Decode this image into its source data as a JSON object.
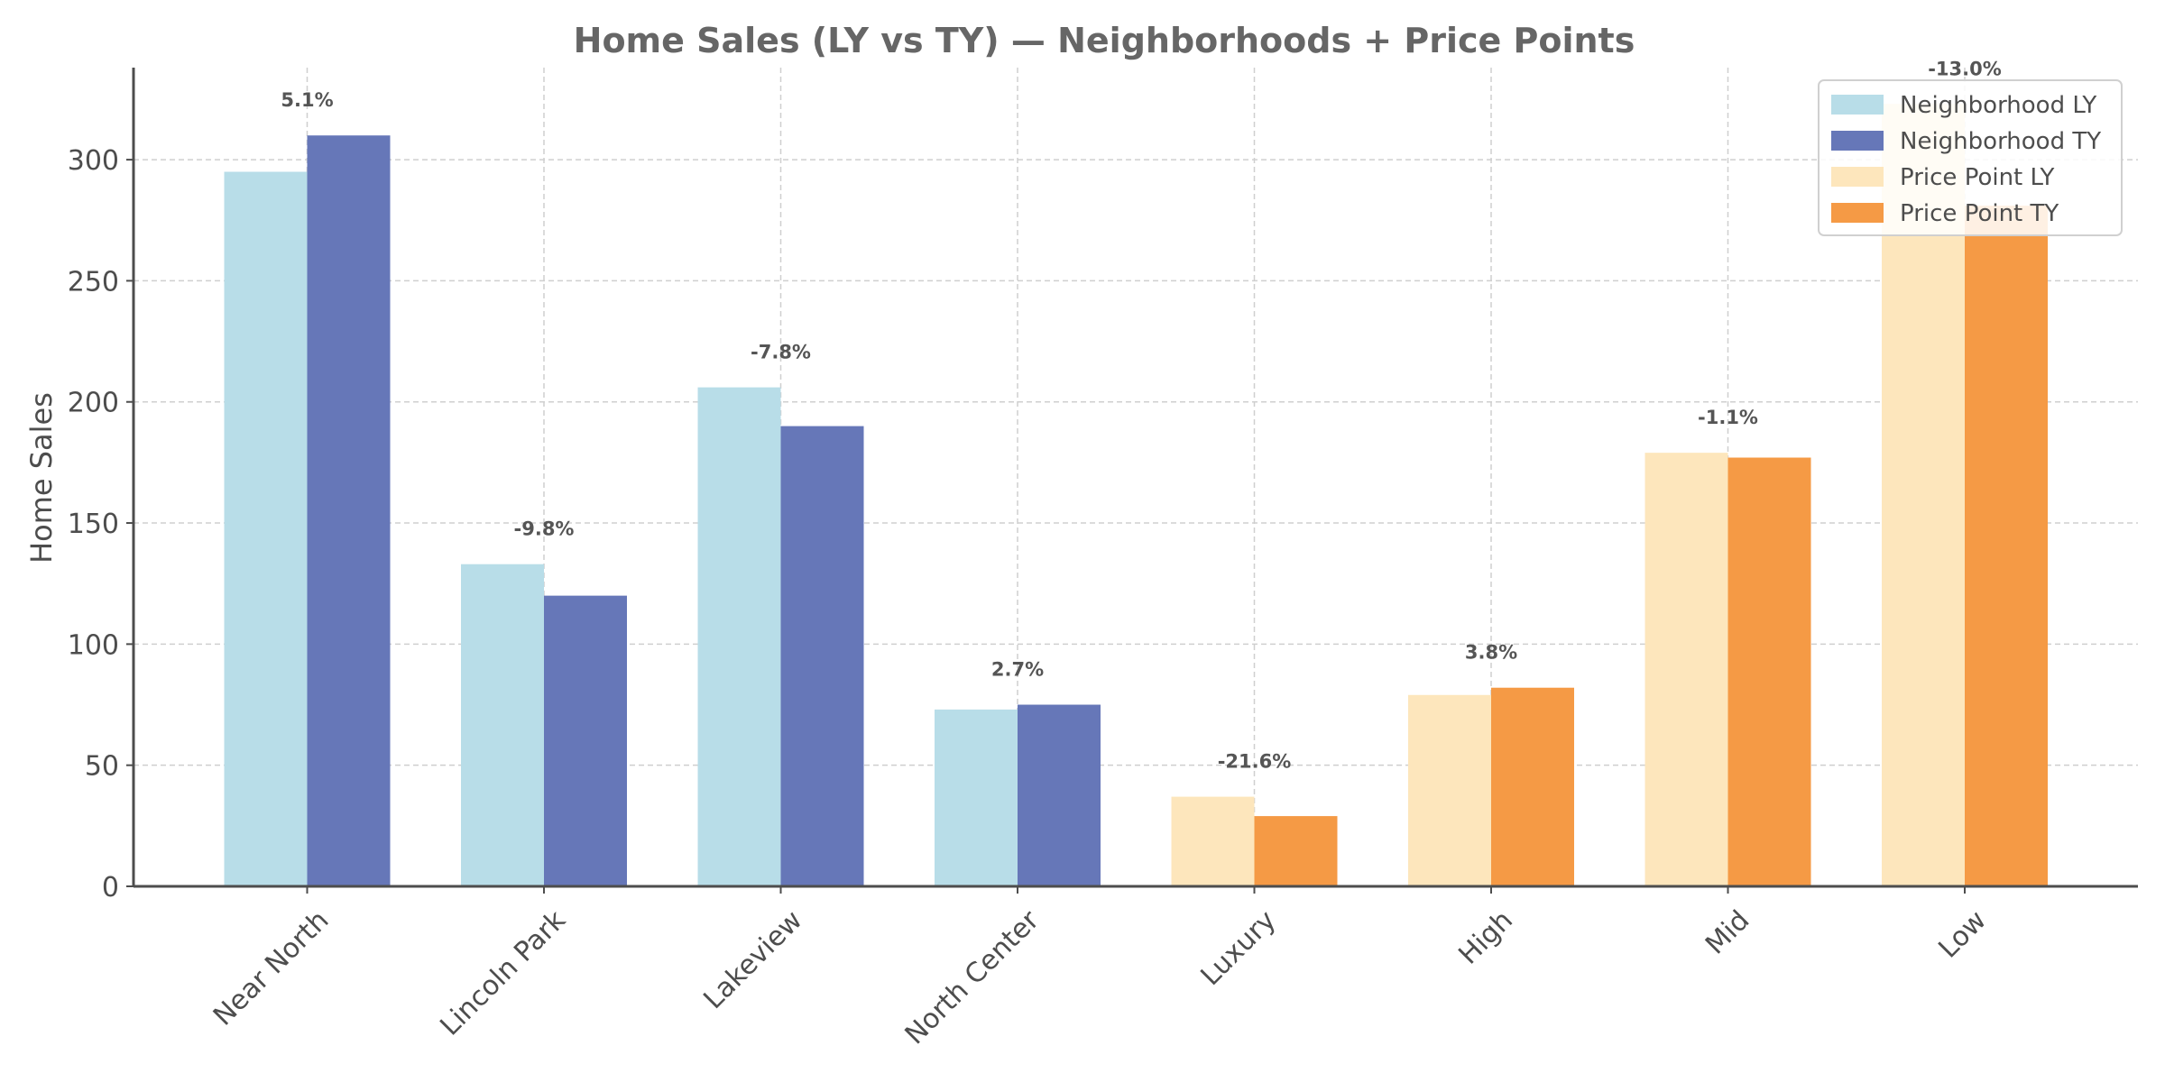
{
  "chart_data": {
    "type": "bar",
    "title": "Home Sales (LY vs TY) — Neighborhoods + Price Points",
    "xlabel": "",
    "ylabel": "Home Sales",
    "ylim": [
      0,
      338
    ],
    "yticks": [
      0,
      50,
      100,
      150,
      200,
      250,
      300
    ],
    "grid": true,
    "legend_position": "top-right",
    "categories": [
      "Near North",
      "Lincoln Park",
      "Lakeview",
      "North Center",
      "Luxury",
      "High",
      "Mid",
      "Low"
    ],
    "groups": [
      {
        "name": "Neighborhood",
        "categories": [
          "Near North",
          "Lincoln Park",
          "Lakeview",
          "North Center"
        ]
      },
      {
        "name": "Price Point",
        "categories": [
          "Luxury",
          "High",
          "Mid",
          "Low"
        ]
      }
    ],
    "series": [
      {
        "name": "Neighborhood LY",
        "color": "#b8dde8",
        "values": [
          295,
          133,
          206,
          73,
          null,
          null,
          null,
          null
        ]
      },
      {
        "name": "Neighborhood TY",
        "color": "#6677b8",
        "values": [
          310,
          120,
          190,
          75,
          null,
          null,
          null,
          null
        ]
      },
      {
        "name": "Price Point LY",
        "color": "#fde6bc",
        "values": [
          null,
          null,
          null,
          null,
          37,
          79,
          179,
          323
        ]
      },
      {
        "name": "Price Point TY",
        "color": "#f59a45",
        "values": [
          null,
          null,
          null,
          null,
          29,
          82,
          177,
          281
        ]
      }
    ],
    "annotations": [
      "5.1%",
      "-9.8%",
      "-7.8%",
      "2.7%",
      "-21.6%",
      "3.8%",
      "-1.1%",
      "-13.0%"
    ]
  }
}
